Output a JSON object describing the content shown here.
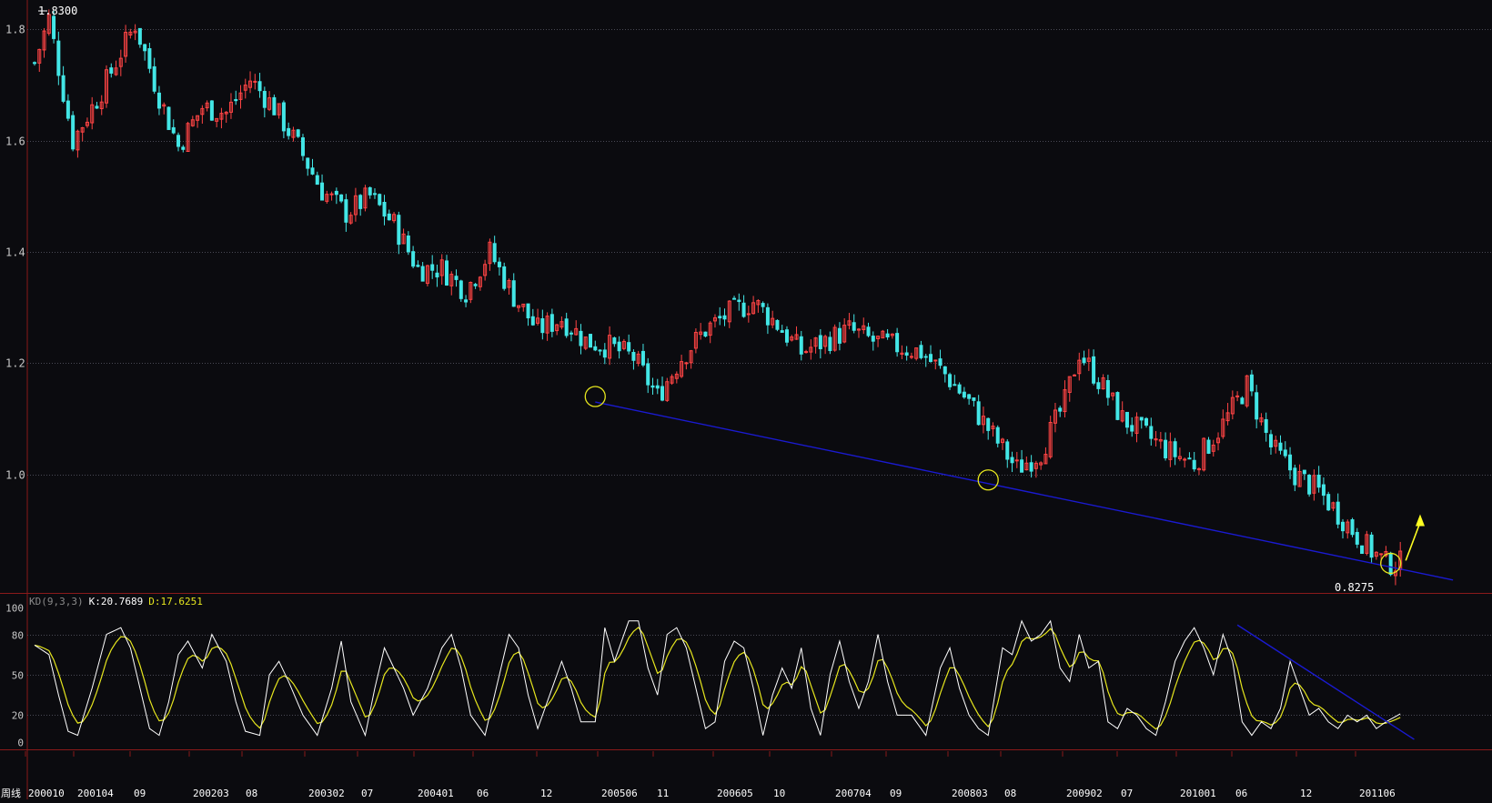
{
  "chart_data": [
    {
      "type": "candlestick",
      "title": "",
      "period_label": "周线",
      "ylim": [
        0.79,
        1.84
      ],
      "y_ticks": [
        "1.8",
        "1.6",
        "1.4",
        "1.2",
        "1.0"
      ],
      "y_tick_values": [
        1.8,
        1.6,
        1.4,
        1.2,
        1.0
      ],
      "high_label": "1.8300",
      "low_label": "0.8275",
      "x_tick_labels": [
        "200010",
        "200104",
        "09",
        "200203",
        "08",
        "200302",
        "07",
        "200401",
        "06",
        "12",
        "200506",
        "11",
        "200605",
        "10",
        "200704",
        "09",
        "200803",
        "08",
        "200902",
        "07",
        "201001",
        "06",
        "12",
        "201106"
      ],
      "close_path": [
        [
          0,
          1.74
        ],
        [
          3,
          1.82
        ],
        [
          8,
          1.6
        ],
        [
          14,
          1.69
        ],
        [
          21,
          1.81
        ],
        [
          26,
          1.68
        ],
        [
          30,
          1.59
        ],
        [
          35,
          1.66
        ],
        [
          40,
          1.65
        ],
        [
          45,
          1.71
        ],
        [
          50,
          1.66
        ],
        [
          55,
          1.59
        ],
        [
          60,
          1.51
        ],
        [
          65,
          1.47
        ],
        [
          70,
          1.5
        ],
        [
          75,
          1.45
        ],
        [
          80,
          1.37
        ],
        [
          85,
          1.37
        ],
        [
          90,
          1.33
        ],
        [
          95,
          1.4
        ],
        [
          100,
          1.32
        ],
        [
          105,
          1.26
        ],
        [
          110,
          1.28
        ],
        [
          115,
          1.24
        ],
        [
          120,
          1.23
        ],
        [
          125,
          1.21
        ],
        [
          130,
          1.14
        ],
        [
          135,
          1.21
        ],
        [
          140,
          1.26
        ],
        [
          145,
          1.29
        ],
        [
          150,
          1.31
        ],
        [
          155,
          1.27
        ],
        [
          160,
          1.22
        ],
        [
          165,
          1.24
        ],
        [
          170,
          1.26
        ],
        [
          175,
          1.24
        ],
        [
          180,
          1.23
        ],
        [
          185,
          1.22
        ],
        [
          190,
          1.18
        ],
        [
          195,
          1.13
        ],
        [
          200,
          1.07
        ],
        [
          205,
          1.01
        ],
        [
          210,
          1.04
        ],
        [
          215,
          1.13
        ],
        [
          218,
          1.22
        ],
        [
          222,
          1.17
        ],
        [
          227,
          1.1
        ],
        [
          232,
          1.07
        ],
        [
          237,
          1.04
        ],
        [
          242,
          1.02
        ],
        [
          248,
          1.09
        ],
        [
          253,
          1.16
        ],
        [
          258,
          1.05
        ],
        [
          263,
          1.0
        ],
        [
          268,
          0.97
        ],
        [
          273,
          0.92
        ],
        [
          278,
          0.87
        ],
        [
          282,
          0.84
        ],
        [
          285,
          0.84
        ]
      ],
      "support_line": [
        [
          117,
          1.13
        ],
        [
          296,
          0.81
        ]
      ],
      "marked_lows": [
        {
          "x": 117,
          "y": 1.14
        },
        {
          "x": 199,
          "y": 0.99
        },
        {
          "x": 283,
          "y": 0.84
        }
      ],
      "colors": {
        "up": "#ff4444",
        "down": "#43e6e6",
        "support": "#1a1ad0",
        "marker": "#e6e61e",
        "arrow": "#ffff22"
      }
    },
    {
      "type": "line",
      "indicator": "KD",
      "params": "(9,3,3)",
      "k_label": "K:20.7689",
      "d_label": "D:17.6251",
      "k_value": 20.7689,
      "d_value": 17.6251,
      "ylim": [
        0,
        100
      ],
      "y_ticks": [
        "100",
        "80",
        "50",
        "20",
        "0"
      ],
      "y_tick_values": [
        100,
        80,
        50,
        20,
        0
      ],
      "series": [
        {
          "key": "K",
          "color": "#ffffff"
        },
        {
          "key": "D",
          "color": "#e6e61e"
        }
      ],
      "k_anchors": [
        [
          0,
          72
        ],
        [
          3,
          65
        ],
        [
          5,
          35
        ],
        [
          7,
          8
        ],
        [
          9,
          5
        ],
        [
          12,
          40
        ],
        [
          15,
          80
        ],
        [
          18,
          85
        ],
        [
          20,
          70
        ],
        [
          22,
          40
        ],
        [
          24,
          10
        ],
        [
          26,
          5
        ],
        [
          28,
          30
        ],
        [
          30,
          65
        ],
        [
          32,
          75
        ],
        [
          35,
          55
        ],
        [
          37,
          80
        ],
        [
          40,
          60
        ],
        [
          42,
          30
        ],
        [
          44,
          8
        ],
        [
          47,
          5
        ],
        [
          49,
          50
        ],
        [
          51,
          60
        ],
        [
          53,
          45
        ],
        [
          56,
          20
        ],
        [
          59,
          5
        ],
        [
          62,
          40
        ],
        [
          64,
          75
        ],
        [
          66,
          30
        ],
        [
          69,
          5
        ],
        [
          71,
          40
        ],
        [
          73,
          70
        ],
        [
          75,
          55
        ],
        [
          77,
          40
        ],
        [
          79,
          20
        ],
        [
          82,
          40
        ],
        [
          85,
          70
        ],
        [
          87,
          80
        ],
        [
          89,
          55
        ],
        [
          91,
          20
        ],
        [
          94,
          5
        ],
        [
          97,
          50
        ],
        [
          99,
          80
        ],
        [
          101,
          70
        ],
        [
          103,
          35
        ],
        [
          105,
          10
        ],
        [
          107,
          30
        ],
        [
          110,
          60
        ],
        [
          112,
          40
        ],
        [
          114,
          15
        ],
        [
          117,
          15
        ],
        [
          119,
          85
        ],
        [
          121,
          60
        ],
        [
          124,
          90
        ],
        [
          126,
          90
        ],
        [
          128,
          55
        ],
        [
          130,
          35
        ],
        [
          132,
          80
        ],
        [
          134,
          85
        ],
        [
          136,
          70
        ],
        [
          138,
          40
        ],
        [
          140,
          10
        ],
        [
          142,
          15
        ],
        [
          144,
          60
        ],
        [
          146,
          75
        ],
        [
          148,
          70
        ],
        [
          150,
          40
        ],
        [
          152,
          5
        ],
        [
          154,
          35
        ],
        [
          156,
          55
        ],
        [
          158,
          40
        ],
        [
          160,
          70
        ],
        [
          162,
          25
        ],
        [
          164,
          5
        ],
        [
          166,
          50
        ],
        [
          168,
          75
        ],
        [
          170,
          45
        ],
        [
          172,
          25
        ],
        [
          174,
          45
        ],
        [
          176,
          80
        ],
        [
          178,
          45
        ],
        [
          180,
          20
        ],
        [
          183,
          20
        ],
        [
          186,
          5
        ],
        [
          189,
          55
        ],
        [
          191,
          70
        ],
        [
          193,
          40
        ],
        [
          195,
          20
        ],
        [
          197,
          10
        ],
        [
          199,
          5
        ],
        [
          202,
          70
        ],
        [
          204,
          65
        ],
        [
          206,
          90
        ],
        [
          208,
          75
        ],
        [
          210,
          80
        ],
        [
          212,
          90
        ],
        [
          214,
          55
        ],
        [
          216,
          45
        ],
        [
          218,
          80
        ],
        [
          220,
          55
        ],
        [
          222,
          60
        ],
        [
          224,
          15
        ],
        [
          226,
          10
        ],
        [
          228,
          25
        ],
        [
          230,
          20
        ],
        [
          232,
          10
        ],
        [
          234,
          5
        ],
        [
          236,
          30
        ],
        [
          238,
          60
        ],
        [
          240,
          75
        ],
        [
          242,
          85
        ],
        [
          244,
          70
        ],
        [
          246,
          50
        ],
        [
          248,
          80
        ],
        [
          250,
          60
        ],
        [
          252,
          15
        ],
        [
          254,
          5
        ],
        [
          256,
          15
        ],
        [
          258,
          10
        ],
        [
          260,
          25
        ],
        [
          262,
          60
        ],
        [
          264,
          40
        ],
        [
          266,
          20
        ],
        [
          268,
          25
        ],
        [
          270,
          15
        ],
        [
          272,
          10
        ],
        [
          274,
          20
        ],
        [
          276,
          15
        ],
        [
          278,
          20
        ],
        [
          280,
          10
        ],
        [
          282,
          15
        ],
        [
          285,
          21
        ]
      ],
      "downtrend_line": [
        [
          251,
          87
        ],
        [
          286,
          2
        ]
      ]
    }
  ]
}
